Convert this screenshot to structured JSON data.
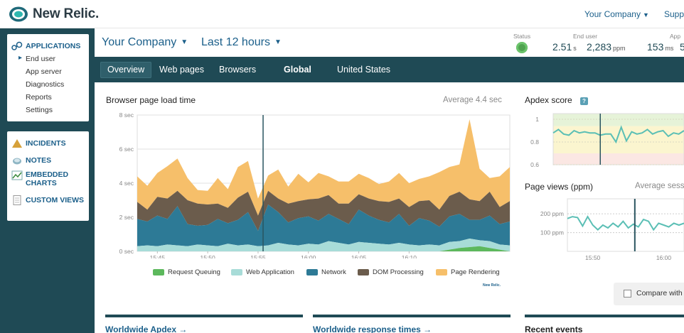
{
  "brand": {
    "name": "New Relic."
  },
  "topnav": {
    "account": "Your Company",
    "support": "Supp"
  },
  "sidebar": {
    "applications": {
      "label": "APPLICATIONS",
      "items": [
        "End user",
        "App server",
        "Diagnostics",
        "Reports",
        "Settings"
      ],
      "active": "End user"
    },
    "tools": [
      {
        "label": "INCIDENTS",
        "icon": "warning-icon"
      },
      {
        "label": "NOTES",
        "icon": "notes-icon"
      },
      {
        "label": "EMBEDDED",
        "label2": "CHARTS",
        "icon": "chart-icon"
      },
      {
        "label": "CUSTOM VIEWS",
        "icon": "document-icon"
      }
    ]
  },
  "header": {
    "company": "Your Company",
    "timeframe": "Last 12 hours",
    "status_label": "Status",
    "enduser_label": "End user",
    "app_label": "App",
    "enduser_time": "2.51",
    "enduser_time_unit": "s",
    "enduser_ppm": "2,283",
    "enduser_ppm_unit": "ppm",
    "app_time": "153",
    "app_time_unit": "ms",
    "app_ppm": "5"
  },
  "tabs": [
    {
      "label": "Overview",
      "active": true
    },
    {
      "label": "Web pages"
    },
    {
      "label": "Browsers"
    },
    {
      "label": "Global",
      "bold": true
    },
    {
      "label": "United States"
    }
  ],
  "main_chart": {
    "title": "Browser page load time",
    "average": "Average 4.4 sec",
    "watermark": "New Relic."
  },
  "apdex": {
    "title": "Apdex score",
    "help": "?"
  },
  "pageviews": {
    "title": "Page views (ppm)",
    "average": "Average sess"
  },
  "compare": {
    "label": "Compare with la"
  },
  "sections": [
    {
      "label": "Worldwide Apdex →"
    },
    {
      "label": "Worldwide response times →"
    },
    {
      "label": "Recent events"
    }
  ],
  "colors": {
    "teal_dark": "#1f4a55",
    "link": "#1b5f8a",
    "request_queuing": "#5cb85c",
    "web_application": "#a8dcd8",
    "network": "#2d7a96",
    "dom_processing": "#6b5c4c",
    "page_rendering": "#f6bf6a"
  },
  "chart_data": [
    {
      "type": "area",
      "stacked": true,
      "title": "Browser page load time",
      "ylabel": "sec",
      "ylim": [
        0,
        8
      ],
      "yticks": [
        0,
        2,
        4,
        6,
        8
      ],
      "ytick_labels": [
        "0 sec",
        "2 sec",
        "4 sec",
        "6 sec",
        "8 sec"
      ],
      "xticks": [
        "15:45",
        "15:50",
        "15:55",
        "16:00",
        "16:05",
        "16:10"
      ],
      "x_minutes": [
        0,
        1,
        2,
        3,
        4,
        5,
        6,
        7,
        8,
        9,
        10,
        11,
        12,
        13,
        14,
        15,
        16,
        17,
        18,
        19,
        20,
        21,
        22,
        23,
        24,
        25,
        26,
        27,
        28,
        29,
        30,
        31,
        32,
        33,
        34,
        35,
        36,
        37
      ],
      "xtick_minutes": [
        2,
        7,
        12,
        17,
        22,
        27
      ],
      "marker_minute": 12.5,
      "series": [
        {
          "name": "Request Queuing",
          "color": "#5cb85c",
          "values": [
            0,
            0,
            0,
            0,
            0,
            0,
            0,
            0,
            0,
            0,
            0,
            0,
            0,
            0,
            0,
            0,
            0,
            0,
            0,
            0,
            0,
            0,
            0,
            0,
            0,
            0,
            0,
            0,
            0,
            0,
            0,
            0.1,
            0.2,
            0.25,
            0.3,
            0.2,
            0.1,
            0
          ]
        },
        {
          "name": "Web Application",
          "color": "#a8dcd8",
          "values": [
            0.3,
            0.35,
            0.3,
            0.4,
            0.35,
            0.3,
            0.4,
            0.35,
            0.3,
            0.45,
            0.35,
            0.4,
            0.3,
            0.35,
            0.5,
            0.4,
            0.35,
            0.45,
            0.4,
            0.6,
            0.5,
            0.4,
            0.55,
            0.5,
            0.45,
            0.4,
            0.5,
            0.4,
            0.35,
            0.4,
            0.35,
            0.45,
            0.4,
            0.5,
            0.35,
            0.4,
            0.3,
            0.35
          ]
        },
        {
          "name": "Network",
          "color": "#2d7a96",
          "values": [
            1.6,
            1.4,
            1.8,
            1.5,
            2.3,
            1.3,
            1.1,
            1.2,
            1.6,
            1.2,
            1.5,
            1.9,
            0.9,
            2.4,
            1.8,
            1.3,
            1.6,
            1.6,
            1.4,
            1.6,
            1.4,
            1.2,
            1.9,
            1.6,
            1.4,
            1.3,
            1.7,
            1.1,
            1.6,
            1.4,
            1.1,
            1.5,
            1.6,
            1.1,
            1.2,
            1.5,
            1.2,
            1.4
          ]
        },
        {
          "name": "DOM Processing",
          "color": "#6b5c4c",
          "values": [
            1.0,
            0.7,
            1.1,
            1.2,
            0.9,
            1.4,
            1.3,
            1.2,
            0.9,
            0.9,
            1.3,
            1.2,
            0.9,
            0.8,
            0.8,
            1.1,
            1.0,
            1.0,
            1.3,
            1.1,
            0.9,
            1.2,
            0.9,
            1.0,
            1.1,
            1.2,
            0.9,
            1.1,
            1.0,
            1.2,
            1.0,
            1.2,
            1.3,
            1.2,
            1.1,
            1.4,
            1.0,
            1.2
          ]
        },
        {
          "name": "Page Rendering",
          "color": "#f6bf6a",
          "values": [
            1.5,
            1.4,
            1.4,
            1.9,
            1.9,
            1.3,
            0.8,
            0.8,
            1.5,
            1.1,
            1.8,
            1.8,
            1.0,
            0.9,
            1.7,
            1.0,
            1.6,
            1.0,
            1.5,
            1.1,
            1.3,
            1.3,
            1.2,
            1.2,
            1.0,
            1.2,
            1.5,
            1.4,
            1.3,
            1.4,
            2.2,
            1.7,
            1.6,
            4.7,
            1.9,
            0.8,
            1.8,
            2.0
          ]
        }
      ]
    },
    {
      "type": "line",
      "title": "Apdex score",
      "ylim": [
        0.6,
        1.05
      ],
      "yticks": [
        1,
        0.8,
        0.6
      ],
      "ytick_labels": [
        "1",
        "0.8",
        "0.6"
      ],
      "marker_index": 9,
      "bands": [
        {
          "from": 0.94,
          "to": 1.07,
          "color": "#e6f3d8"
        },
        {
          "from": 0.7,
          "to": 0.94,
          "color": "#fbf5cf"
        },
        {
          "from": 0.6,
          "to": 0.7,
          "color": "#fbe7e3"
        }
      ],
      "values": [
        0.88,
        0.91,
        0.87,
        0.86,
        0.9,
        0.88,
        0.89,
        0.88,
        0.88,
        0.86,
        0.87,
        0.87,
        0.8,
        0.93,
        0.81,
        0.89,
        0.87,
        0.88,
        0.91,
        0.87,
        0.89,
        0.9,
        0.85,
        0.88,
        0.87,
        0.9
      ]
    },
    {
      "type": "line",
      "title": "Page views (ppm)",
      "ylim": [
        0,
        280
      ],
      "yticks": [
        200,
        100
      ],
      "ytick_labels": [
        "200 ppm",
        "100 ppm"
      ],
      "xticks": [
        "15:50",
        "16:00"
      ],
      "xtick_index": [
        5,
        19
      ],
      "marker_index": 13.3,
      "values": [
        175,
        185,
        180,
        135,
        185,
        140,
        115,
        140,
        125,
        150,
        130,
        160,
        125,
        145,
        130,
        170,
        160,
        115,
        150,
        140,
        130,
        150,
        140,
        150
      ]
    }
  ]
}
